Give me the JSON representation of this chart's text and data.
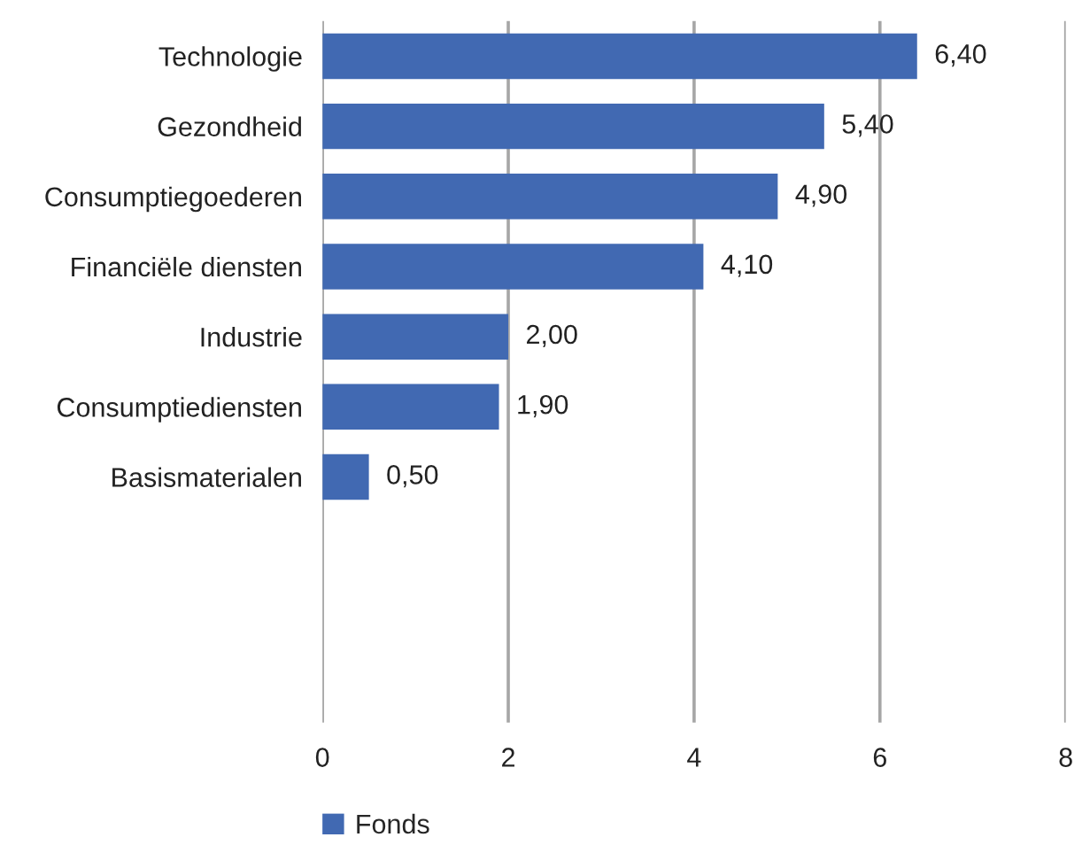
{
  "chart_data": {
    "type": "bar",
    "orientation": "horizontal",
    "categories": [
      "Technologie",
      "Gezondheid",
      "Consumptiegoederen",
      "Financiële diensten",
      "Industrie",
      "Consumptiediensten",
      "Basismaterialen",
      null,
      null,
      null
    ],
    "series": [
      {
        "name": "Fonds",
        "color": "#4169b2",
        "values": [
          6.4,
          5.4,
          4.9,
          4.1,
          2.0,
          1.9,
          0.5,
          null,
          null,
          null
        ],
        "value_labels": [
          "6,40",
          "5,40",
          "4,90",
          "4,10",
          "2,00",
          "1,90",
          "0,50",
          null,
          null,
          null
        ]
      }
    ],
    "xlim": [
      0,
      8
    ],
    "xticks": [
      0,
      2,
      4,
      6,
      8
    ],
    "grid": "x",
    "legend": "bottom left"
  }
}
